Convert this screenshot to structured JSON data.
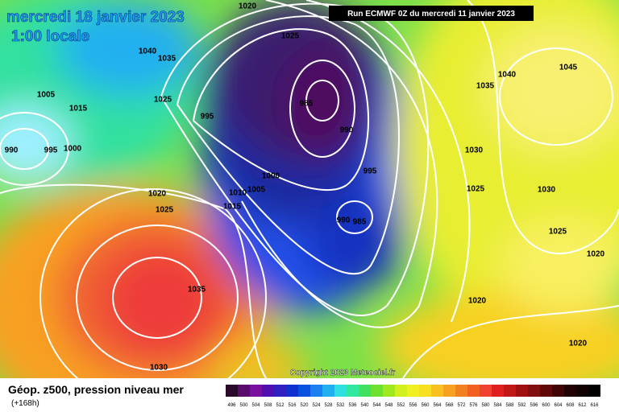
{
  "header": {
    "date": "mercredi 18 janvier 2023",
    "time": "1:00 locale",
    "run": "Run ECMWF 0Z du mercredi 11 janvier 2023"
  },
  "isobar_labels": [
    1020,
    1025,
    1040,
    1035,
    1005,
    1015,
    990,
    995,
    1000,
    1025,
    995,
    985,
    990,
    995,
    1000,
    1010,
    1005,
    1015,
    1020,
    1025,
    990,
    985,
    1035,
    1030,
    1035,
    1040,
    1045,
    1030,
    1025,
    1030,
    1025,
    1020,
    1020,
    1020
  ],
  "copyright": "Copyright 2023 Meteociel.fr",
  "footer": {
    "title": "Géop. z500, pression niveau mer",
    "lead": "(+168h)"
  },
  "legend": {
    "values": [
      496,
      500,
      504,
      508,
      512,
      516,
      520,
      524,
      528,
      532,
      536,
      540,
      544,
      548,
      552,
      556,
      560,
      564,
      568,
      572,
      576,
      580,
      584,
      588,
      592,
      596,
      600,
      604,
      608,
      612,
      616
    ]
  }
}
